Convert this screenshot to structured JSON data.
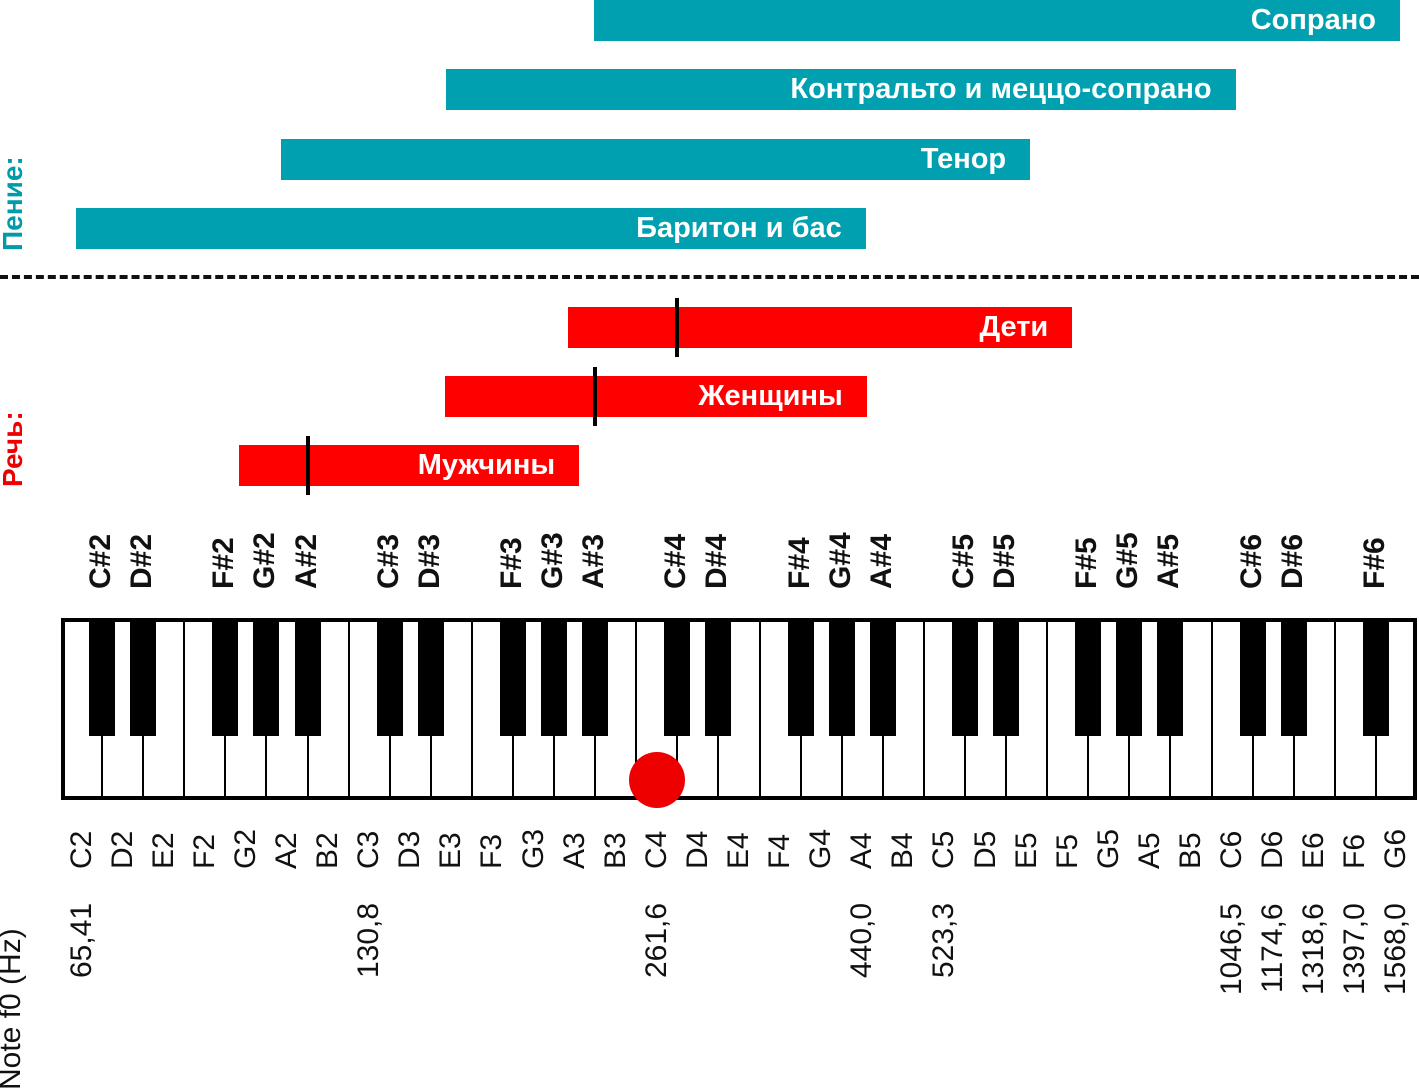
{
  "colors": {
    "singing": "#00a0b0",
    "speech": "#ff0000",
    "singing_label": "#009aa8",
    "speech_label": "#ee0000",
    "dot": "#ee0000"
  },
  "section_labels": {
    "singing": "Пение:",
    "speech": "Речь:"
  },
  "axis_title": "Note f0 (Hz)",
  "keyboard": {
    "white_notes": [
      "C2",
      "D2",
      "E2",
      "F2",
      "G2",
      "A2",
      "B2",
      "C3",
      "D3",
      "E3",
      "F3",
      "G3",
      "A3",
      "B3",
      "C4",
      "D4",
      "E4",
      "F4",
      "G4",
      "A4",
      "B4",
      "C5",
      "D5",
      "E5",
      "F5",
      "G5",
      "A5",
      "B5",
      "C6",
      "D6",
      "E6",
      "F6",
      "G6"
    ],
    "black_notes": [
      "C#2",
      "D#2",
      "F#2",
      "G#2",
      "A#2",
      "C#3",
      "D#3",
      "F#3",
      "G#3",
      "A#3",
      "C#4",
      "D#4",
      "F#4",
      "G#4",
      "A#4",
      "C#5",
      "D#5",
      "F#5",
      "G#5",
      "A#5",
      "C#6",
      "D#6",
      "F#6"
    ],
    "highlight_note": "C4"
  },
  "frequencies": [
    {
      "note": "C2",
      "label": "65,41"
    },
    {
      "note": "C3",
      "label": "130,8"
    },
    {
      "note": "C4",
      "label": "261,6"
    },
    {
      "note": "A4",
      "label": "440,0"
    },
    {
      "note": "C5",
      "label": "523,3"
    },
    {
      "note": "C6",
      "label": "1046,5"
    },
    {
      "note": "D6",
      "label": "1174,6"
    },
    {
      "note": "E6",
      "label": "1318,6"
    },
    {
      "note": "F6",
      "label": "1397,0"
    },
    {
      "note": "G6",
      "label": "1568,0"
    }
  ],
  "singing_ranges": [
    {
      "label": "Сопрано",
      "from_note": "A#3",
      "to_note": "G6"
    },
    {
      "label": "Контральто и меццо-сопрано",
      "from_note": "E3",
      "to_note": "C6"
    },
    {
      "label": "Тенор",
      "from_note": "A2",
      "to_note": "E5"
    },
    {
      "label": "Баритон и бас",
      "from_note": "C2",
      "to_note": "A4"
    }
  ],
  "speech_ranges": [
    {
      "label": "Дети",
      "from_note": "A3",
      "to_note": "F5",
      "typical_note": "C#4"
    },
    {
      "label": "Женщины",
      "from_note": "E3",
      "to_note": "A4",
      "typical_note": "A#3"
    },
    {
      "label": "Мужчины",
      "from_note": "G2",
      "to_note": "A3",
      "typical_note": "A#2"
    }
  ]
}
